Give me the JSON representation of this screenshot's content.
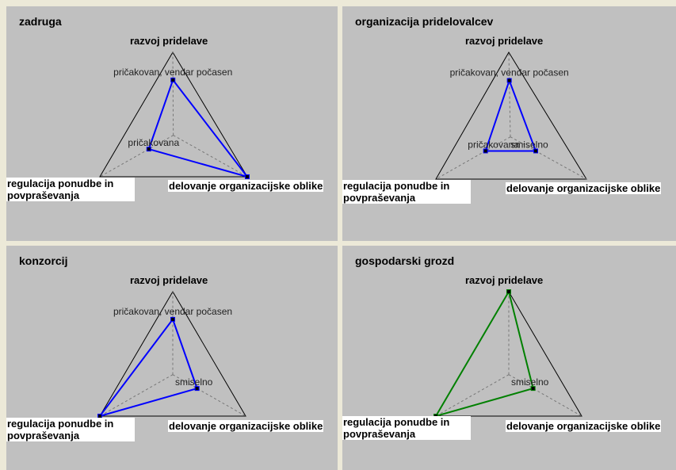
{
  "chart_data": [
    {
      "type": "radar",
      "title": "zadruga",
      "axes": [
        "razvoj pridelave",
        "delovanje organizacijske oblike",
        "regulacija ponudbe in povpraševanja"
      ],
      "levels": 3,
      "color": "#0000ff",
      "values": [
        2,
        3,
        1
      ],
      "point_labels": [
        "pričakovan, vendar počasen",
        "",
        "pričakovana"
      ]
    },
    {
      "type": "radar",
      "title": "organizacija pridelovalcev",
      "axes": [
        "razvoj pridelave",
        "delovanje organizacijske oblike",
        "regulacija ponudbe in povpraševanja"
      ],
      "levels": 3,
      "color": "#0000ff",
      "values": [
        2,
        1,
        1
      ],
      "point_labels": [
        "pričakovan, vendar počasen",
        "smiselno",
        "pričakovana"
      ]
    },
    {
      "type": "radar",
      "title": "konzorcij",
      "axes": [
        "razvoj pridelave",
        "delovanje organizacijske oblike",
        "regulacija ponudbe in povpraševanja"
      ],
      "levels": 3,
      "color": "#0000ff",
      "values": [
        2,
        1,
        3
      ],
      "point_labels": [
        "pričakovan, vendar počasen",
        "smiselno",
        ""
      ]
    },
    {
      "type": "radar",
      "title": "gospodarski grozd",
      "axes": [
        "razvoj pridelave",
        "delovanje organizacijske oblike",
        "regulacija ponudbe in povpraševanja"
      ],
      "levels": 3,
      "color": "#008000",
      "values": [
        3,
        1,
        3
      ],
      "point_labels": [
        "",
        "smiselno",
        ""
      ]
    }
  ]
}
